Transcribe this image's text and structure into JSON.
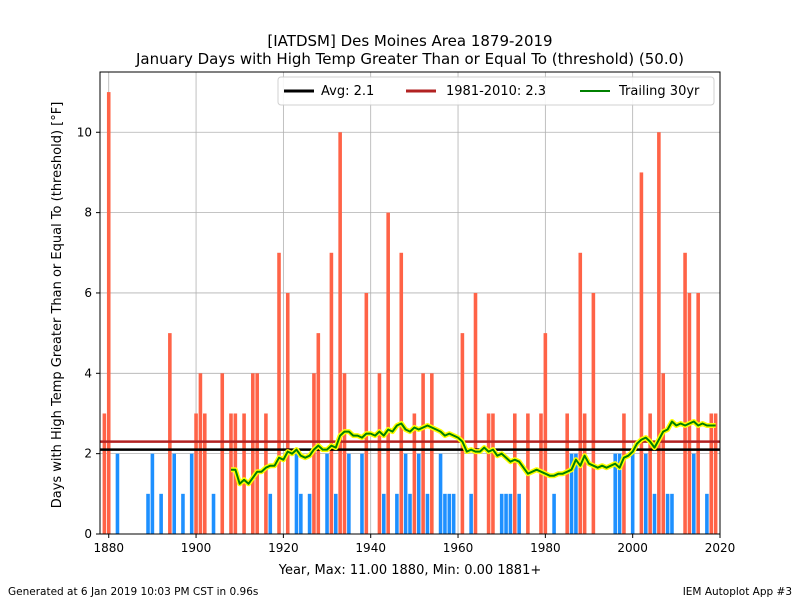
{
  "chart_data": {
    "type": "bar",
    "title": "[IATDSM] Des Moines Area 1879-2019",
    "subtitle": "January Days with High Temp Greater Than or Equal To (threshold) (50.0)",
    "xlabel": "Year, Max: 11.00 1880, Min: 0.00 1881+",
    "ylabel": "Days with High Temp Greater Than or Equal To (threshold) [°F]",
    "xlim": [
      1878,
      2020
    ],
    "ylim": [
      0,
      11.5
    ],
    "x_ticks": [
      "1880",
      "1900",
      "1920",
      "1940",
      "1960",
      "1980",
      "2000",
      "2020"
    ],
    "y_ticks": [
      "0",
      "2",
      "4",
      "6",
      "8",
      "10"
    ],
    "grid": true,
    "legend_position": "top-right",
    "colors": {
      "above_avg": "#ff6347",
      "below_avg": "#1e90ff",
      "avg_line": "#000000",
      "normal_line": "#b22222",
      "trailing_outline": "#ffff00",
      "trailing_line": "#008000"
    },
    "years": [
      1879,
      1880,
      1881,
      1882,
      1883,
      1884,
      1885,
      1886,
      1887,
      1888,
      1889,
      1890,
      1891,
      1892,
      1893,
      1894,
      1895,
      1896,
      1897,
      1898,
      1899,
      1900,
      1901,
      1902,
      1903,
      1904,
      1905,
      1906,
      1907,
      1908,
      1909,
      1910,
      1911,
      1912,
      1913,
      1914,
      1915,
      1916,
      1917,
      1918,
      1919,
      1920,
      1921,
      1922,
      1923,
      1924,
      1925,
      1926,
      1927,
      1928,
      1929,
      1930,
      1931,
      1932,
      1933,
      1934,
      1935,
      1936,
      1937,
      1938,
      1939,
      1940,
      1941,
      1942,
      1943,
      1944,
      1945,
      1946,
      1947,
      1948,
      1949,
      1950,
      1951,
      1952,
      1953,
      1954,
      1955,
      1956,
      1957,
      1958,
      1959,
      1960,
      1961,
      1962,
      1963,
      1964,
      1965,
      1966,
      1967,
      1968,
      1969,
      1970,
      1971,
      1972,
      1973,
      1974,
      1975,
      1976,
      1977,
      1978,
      1979,
      1980,
      1981,
      1982,
      1983,
      1984,
      1985,
      1986,
      1987,
      1988,
      1989,
      1990,
      1991,
      1992,
      1993,
      1994,
      1995,
      1996,
      1997,
      1998,
      1999,
      2000,
      2001,
      2002,
      2003,
      2004,
      2005,
      2006,
      2007,
      2008,
      2009,
      2010,
      2011,
      2012,
      2013,
      2014,
      2015,
      2016,
      2017,
      2018,
      2019
    ],
    "values": [
      3,
      11,
      0,
      2,
      0,
      0,
      0,
      0,
      0,
      0,
      1,
      2,
      0,
      1,
      0,
      5,
      2,
      0,
      1,
      0,
      2,
      3,
      4,
      3,
      0,
      1,
      0,
      4,
      0,
      3,
      3,
      0,
      3,
      0,
      4,
      4,
      0,
      3,
      1,
      0,
      7,
      0,
      6,
      0,
      2,
      1,
      0,
      1,
      4,
      5,
      0,
      2,
      7,
      1,
      10,
      4,
      2,
      0,
      0,
      2,
      6,
      0,
      0,
      4,
      1,
      8,
      0,
      1,
      7,
      2,
      1,
      3,
      2,
      4,
      1,
      4,
      0,
      2,
      1,
      1,
      1,
      0,
      5,
      0,
      1,
      6,
      0,
      0,
      3,
      3,
      0,
      1,
      1,
      1,
      3,
      1,
      0,
      3,
      0,
      0,
      3,
      5,
      0,
      1,
      0,
      0,
      3,
      2,
      2,
      7,
      3,
      0,
      6,
      0,
      0,
      0,
      0,
      2,
      2,
      3,
      0,
      2,
      0,
      9,
      2,
      3,
      1,
      10,
      4,
      1,
      1,
      0,
      0,
      7,
      6,
      2,
      6,
      0,
      1,
      3,
      3
    ],
    "series": [
      {
        "name": "Avg: 2.1",
        "type": "hline",
        "value": 2.1
      },
      {
        "name": "1981-2010: 2.3",
        "type": "hline",
        "value": 2.3
      },
      {
        "name": "Trailing 30yr",
        "type": "line",
        "x": [
          1908,
          1909,
          1910,
          1911,
          1912,
          1913,
          1914,
          1915,
          1916,
          1917,
          1918,
          1919,
          1920,
          1921,
          1922,
          1923,
          1924,
          1925,
          1926,
          1927,
          1928,
          1929,
          1930,
          1931,
          1932,
          1933,
          1934,
          1935,
          1936,
          1937,
          1938,
          1939,
          1940,
          1941,
          1942,
          1943,
          1944,
          1945,
          1946,
          1947,
          1948,
          1949,
          1950,
          1951,
          1952,
          1953,
          1954,
          1955,
          1956,
          1957,
          1958,
          1959,
          1960,
          1961,
          1962,
          1963,
          1964,
          1965,
          1966,
          1967,
          1968,
          1969,
          1970,
          1971,
          1972,
          1973,
          1974,
          1975,
          1976,
          1977,
          1978,
          1979,
          1980,
          1981,
          1982,
          1983,
          1984,
          1985,
          1986,
          1987,
          1988,
          1989,
          1990,
          1991,
          1992,
          1993,
          1994,
          1995,
          1996,
          1997,
          1998,
          1999,
          2000,
          2001,
          2002,
          2003,
          2004,
          2005,
          2006,
          2007,
          2008,
          2009,
          2010,
          2011,
          2012,
          2013,
          2014,
          2015,
          2016,
          2017,
          2018,
          2019
        ],
        "y": [
          1.6,
          1.6,
          1.25,
          1.35,
          1.25,
          1.4,
          1.55,
          1.55,
          1.65,
          1.7,
          1.7,
          1.9,
          1.85,
          2.05,
          2.0,
          2.1,
          1.95,
          1.9,
          1.95,
          2.1,
          2.2,
          2.1,
          2.1,
          2.2,
          2.15,
          2.45,
          2.55,
          2.55,
          2.45,
          2.45,
          2.4,
          2.5,
          2.5,
          2.45,
          2.55,
          2.45,
          2.6,
          2.55,
          2.7,
          2.75,
          2.6,
          2.55,
          2.65,
          2.6,
          2.65,
          2.7,
          2.65,
          2.6,
          2.55,
          2.45,
          2.5,
          2.45,
          2.4,
          2.3,
          2.05,
          2.1,
          2.05,
          2.05,
          2.15,
          2.05,
          2.1,
          1.95,
          2.0,
          1.9,
          1.8,
          1.85,
          1.8,
          1.65,
          1.5,
          1.55,
          1.6,
          1.55,
          1.5,
          1.45,
          1.45,
          1.5,
          1.5,
          1.55,
          1.6,
          1.85,
          1.7,
          1.95,
          1.75,
          1.7,
          1.65,
          1.7,
          1.65,
          1.7,
          1.75,
          1.65,
          1.9,
          1.95,
          2.05,
          2.25,
          2.35,
          2.4,
          2.3,
          2.15,
          2.35,
          2.55,
          2.6,
          2.8,
          2.7,
          2.75,
          2.7,
          2.75,
          2.8,
          2.7,
          2.75,
          2.7,
          2.7,
          2.7
        ]
      }
    ]
  },
  "footer": {
    "generated": "Generated at 6 Jan 2019 10:03 PM CST in 0.96s",
    "app": "IEM Autoplot App #3"
  }
}
